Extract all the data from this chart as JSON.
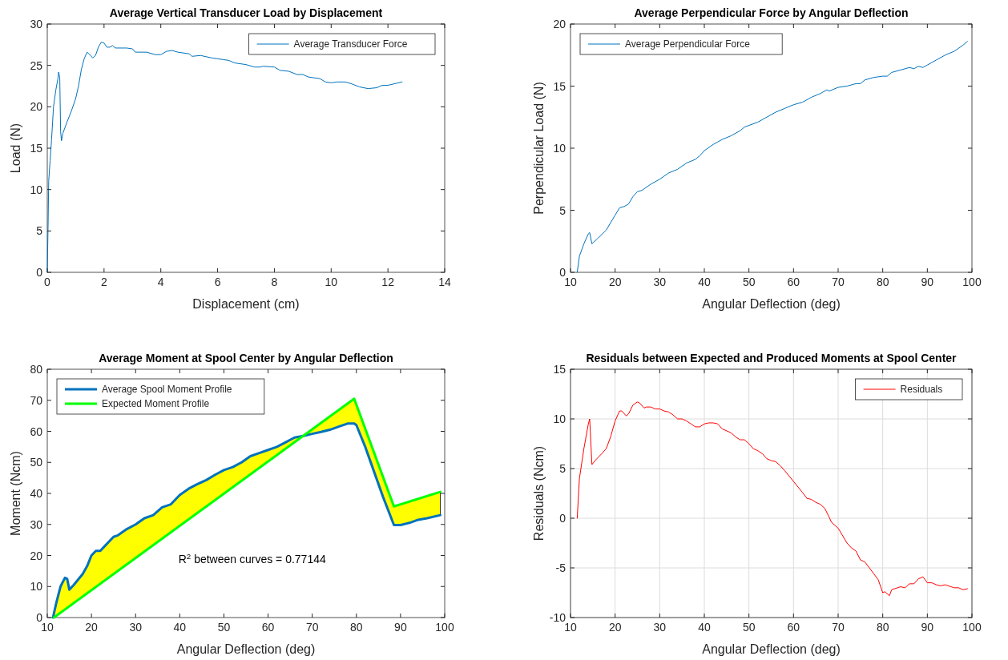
{
  "chart_data": [
    {
      "type": "line",
      "title": "Average Vertical Transducer Load by Displacement",
      "xlabel": "Displacement (cm)",
      "ylabel": "Load (N)",
      "xlim": [
        0,
        14
      ],
      "xticks": [
        0,
        2,
        4,
        6,
        8,
        10,
        12,
        14
      ],
      "ylim": [
        0,
        30
      ],
      "yticks": [
        0,
        5,
        10,
        15,
        20,
        25,
        30
      ],
      "legend": "top right",
      "series": [
        {
          "name": "Average Transducer Force",
          "color": "#0072bd",
          "x": [
            0,
            0.03,
            0.05,
            0.1,
            0.15,
            0.22,
            0.3,
            0.38,
            0.4,
            0.44,
            0.47,
            0.5,
            0.55,
            0.7,
            0.85,
            1.0,
            1.1,
            1.2,
            1.3,
            1.4,
            1.5,
            1.6,
            1.7,
            1.8,
            1.9,
            2.0,
            2.1,
            2.2,
            2.3,
            2.4,
            2.8,
            3.0,
            3.1,
            3.5,
            3.8,
            4.0,
            4.2,
            4.4,
            4.6,
            5.0,
            5.1,
            5.4,
            5.8,
            6.0,
            6.2,
            6.4,
            6.6,
            7.0,
            7.3,
            7.5,
            7.6,
            8.0,
            8.2,
            8.5,
            8.8,
            9.0,
            9.2,
            9.6,
            9.8,
            10.0,
            10.2,
            10.5,
            10.7,
            11.0,
            11.3,
            11.6,
            11.8,
            12.0,
            12.5
          ],
          "values": [
            0,
            6,
            11,
            13.5,
            16,
            20,
            22,
            23.5,
            24.2,
            23.5,
            17,
            15.9,
            16.8,
            18.2,
            19.5,
            21,
            22.5,
            24.5,
            25.8,
            26.6,
            26.3,
            25.9,
            26.2,
            27.2,
            27.8,
            27.7,
            27.2,
            27.2,
            27.4,
            27.1,
            27.1,
            27.0,
            26.6,
            26.6,
            26.3,
            26.3,
            26.7,
            26.8,
            26.6,
            26.4,
            26.1,
            26.2,
            25.9,
            25.8,
            25.7,
            25.6,
            25.3,
            25.1,
            24.8,
            24.8,
            24.9,
            24.8,
            24.4,
            24.3,
            23.9,
            23.9,
            23.6,
            23.4,
            23.0,
            22.9,
            23.0,
            23.0,
            22.8,
            22.4,
            22.2,
            22.3,
            22.6,
            22.6,
            23.0
          ]
        }
      ]
    },
    {
      "type": "line",
      "title": "Average Perpendicular Force by Angular Deflection",
      "xlabel": "Angular Deflection (deg)",
      "ylabel": "Perpendicular Load (N)",
      "xlim": [
        10,
        100
      ],
      "xticks": [
        10,
        20,
        30,
        40,
        50,
        60,
        70,
        80,
        90,
        100
      ],
      "ylim": [
        0,
        20
      ],
      "yticks": [
        0,
        5,
        10,
        15,
        20
      ],
      "legend": "top left",
      "series": [
        {
          "name": "Average Perpendicular Force",
          "color": "#0072bd",
          "x": [
            11.5,
            12,
            13,
            14,
            14.3,
            14.8,
            16,
            18,
            19,
            20,
            21,
            22,
            23,
            24,
            25,
            26,
            28,
            30,
            32,
            34,
            36,
            38,
            39,
            40,
            42,
            44,
            46,
            48,
            49,
            52,
            54,
            56,
            58,
            60,
            62,
            64,
            66,
            67.5,
            68,
            70,
            72,
            74,
            75,
            76,
            78,
            80,
            81,
            82,
            84,
            86,
            87,
            88,
            89,
            90,
            92,
            94,
            96,
            98,
            99
          ],
          "values": [
            0,
            1.3,
            2.3,
            3.1,
            3.2,
            2.3,
            2.7,
            3.4,
            4.0,
            4.6,
            5.2,
            5.3,
            5.5,
            6.1,
            6.5,
            6.6,
            7.1,
            7.5,
            8.0,
            8.3,
            8.8,
            9.1,
            9.4,
            9.8,
            10.3,
            10.7,
            11.0,
            11.4,
            11.7,
            12.1,
            12.5,
            12.9,
            13.2,
            13.5,
            13.7,
            14.1,
            14.4,
            14.7,
            14.6,
            14.9,
            15.0,
            15.2,
            15.2,
            15.5,
            15.7,
            15.8,
            15.8,
            16.1,
            16.3,
            16.5,
            16.4,
            16.6,
            16.5,
            16.7,
            17.1,
            17.5,
            17.8,
            18.3,
            18.6
          ]
        }
      ]
    },
    {
      "type": "line",
      "title": "Average Moment at Spool Center by Angular Deflection",
      "xlabel": "Angular Deflection (deg)",
      "ylabel": "Moment (Ncm)",
      "xlim": [
        10,
        100
      ],
      "xticks": [
        10,
        20,
        30,
        40,
        50,
        60,
        70,
        80,
        90,
        100
      ],
      "ylim": [
        0,
        80
      ],
      "yticks": [
        0,
        10,
        20,
        30,
        40,
        50,
        60,
        70,
        80
      ],
      "legend": "top left",
      "annotations": [
        "R$^{2}$ between curves = 0.77144"
      ],
      "series": [
        {
          "name": "Average Spool Moment Profile",
          "color": "#0072bd",
          "x": [
            11.3,
            12,
            13,
            14,
            14.5,
            15,
            16,
            18,
            19,
            20,
            21,
            22,
            23,
            25,
            26,
            28,
            30,
            32,
            34,
            36,
            38,
            40,
            42,
            44,
            46,
            48,
            50,
            52,
            54,
            56,
            58,
            60,
            62,
            64,
            66,
            68,
            70,
            72,
            74,
            76,
            78,
            79.5,
            80,
            82,
            84,
            86,
            88.5,
            90,
            92,
            94,
            96,
            99
          ],
          "values": [
            0,
            4.5,
            10,
            12.8,
            12.5,
            9,
            10.5,
            14,
            16.5,
            20,
            21.5,
            21.5,
            23,
            26,
            26.5,
            28.5,
            30,
            32,
            33,
            35.5,
            36.5,
            39.5,
            41.5,
            43,
            44.3,
            46,
            47.5,
            48.5,
            50,
            52,
            53,
            54,
            55,
            56.5,
            58,
            58.5,
            59.2,
            59.8,
            60.5,
            61.5,
            62.5,
            62.5,
            62,
            55,
            47,
            39,
            29.8,
            29.8,
            30.5,
            31.5,
            32,
            33
          ],
          "lower": [
            0,
            0.5,
            1.6,
            2.6,
            3.1,
            3.6,
            4.7,
            6.7,
            7.8,
            8.8,
            9.8,
            10.9,
            11.9,
            14.0,
            15.0,
            17.1,
            19.2,
            21.3,
            23.3,
            25.4,
            27.5,
            29.5,
            31.6,
            33.7,
            35.8,
            37.8,
            39.9,
            42.0,
            44.1,
            46.1,
            48.2,
            50.3,
            52.4,
            54.4,
            56.5,
            58.5,
            59.2,
            59.8,
            60.5,
            61.5,
            62.5,
            62.5,
            62,
            55,
            47,
            39,
            29.8,
            29.8,
            30.5,
            31.5,
            32,
            33
          ],
          "upper": [
            0,
            4.5,
            10,
            12.8,
            12.5,
            9,
            10.5,
            14,
            16.5,
            20,
            21.5,
            21.5,
            23,
            26,
            26.5,
            28.5,
            30,
            32,
            33,
            35.5,
            36.5,
            39.5,
            41.5,
            43,
            44.3,
            46,
            47.5,
            48.5,
            50,
            52,
            53,
            54,
            55,
            56.5,
            58,
            58.6,
            60.6,
            62.7,
            64.8,
            66.9,
            68.9,
            70.5,
            68.6,
            60.9,
            53.2,
            45.4,
            35.8,
            36.5,
            37.4,
            38.3,
            39.2,
            40.5
          ]
        },
        {
          "name": "Expected Moment Profile",
          "color": "#00ff00",
          "x": [
            11.5,
            79.5,
            88.5,
            99
          ],
          "values": [
            0,
            70.5,
            35.8,
            40.5
          ]
        }
      ]
    },
    {
      "type": "line",
      "title": "Residuals between Expected and Produced Moments at Spool Center",
      "xlabel": "Angular Deflection (deg)",
      "ylabel": "Residuals (Ncm)",
      "xlim": [
        10,
        100
      ],
      "xticks": [
        10,
        20,
        30,
        40,
        50,
        60,
        70,
        80,
        90,
        100
      ],
      "ylim": [
        -10,
        15
      ],
      "yticks": [
        -10,
        -5,
        0,
        5,
        10,
        15
      ],
      "grid": true,
      "legend": "top right",
      "series": [
        {
          "name": "Residuals",
          "color": "#ff0000",
          "x": [
            11.5,
            12,
            13,
            14,
            14.3,
            14.8,
            15.5,
            17,
            18,
            19,
            20,
            21,
            21.5,
            22.5,
            23,
            24,
            25,
            25.5,
            26.5,
            27,
            28,
            29,
            30,
            31,
            32,
            33,
            34,
            35,
            36,
            37,
            38,
            39,
            40,
            41,
            42,
            43,
            44,
            46,
            47,
            48,
            49,
            50,
            51,
            52,
            53,
            54,
            55,
            56,
            57,
            58,
            60,
            62,
            63,
            64,
            65,
            66,
            67,
            68,
            68.5,
            70,
            72,
            73,
            74,
            75,
            76,
            78,
            79,
            80,
            80.5,
            81.5,
            82,
            84,
            85,
            86,
            87,
            88,
            89,
            90,
            91,
            92,
            93,
            94,
            96,
            97,
            98,
            99
          ],
          "values": [
            0,
            4,
            7,
            9.5,
            10,
            5.4,
            5.8,
            6.5,
            7,
            8.2,
            9.8,
            10.8,
            10.8,
            10.3,
            10.5,
            11.4,
            11.7,
            11.6,
            11.1,
            11.2,
            11.2,
            11.0,
            11.0,
            10.8,
            10.7,
            10.4,
            10.0,
            10.0,
            9.8,
            9.5,
            9.2,
            9.2,
            9.5,
            9.6,
            9.6,
            9.5,
            9.0,
            8.6,
            8.2,
            7.9,
            7.9,
            7.5,
            7.0,
            6.8,
            6.5,
            6.0,
            5.8,
            5.7,
            5.3,
            4.8,
            3.7,
            2.6,
            2.0,
            1.9,
            1.6,
            1.4,
            1.0,
            0.1,
            -0.4,
            -1.0,
            -2.5,
            -3.0,
            -3.3,
            -4.2,
            -4.4,
            -5.6,
            -6.2,
            -7.5,
            -7.4,
            -7.8,
            -7.2,
            -6.9,
            -7.0,
            -6.6,
            -6.6,
            -6.1,
            -5.9,
            -6.5,
            -6.5,
            -6.7,
            -6.8,
            -6.7,
            -7.0,
            -7.0,
            -7.2,
            -7.1
          ]
        }
      ]
    }
  ]
}
